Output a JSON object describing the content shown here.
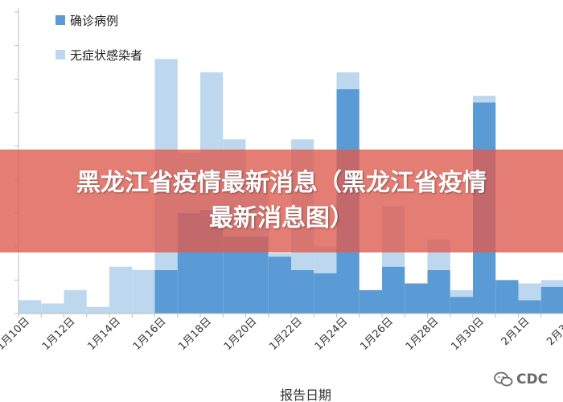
{
  "chart_data": {
    "type": "bar",
    "stacked": true,
    "categories": [
      "1月10日",
      "1月11日",
      "1月12日",
      "1月13日",
      "1月14日",
      "1月15日",
      "1月16日",
      "1月17日",
      "1月18日",
      "1月19日",
      "1月20日",
      "1月21日",
      "1月22日",
      "1月23日",
      "1月24日",
      "1月25日",
      "1月26日",
      "1月27日",
      "1月28日",
      "1月29日",
      "1月30日",
      "1月31日",
      "2月1日",
      "2月2日",
      "2月3日"
    ],
    "x_tick_labels": [
      "1月10日",
      "1月12日",
      "1月14日",
      "1月16日",
      "1月18日",
      "1月20日",
      "1月22日",
      "1月24日",
      "1月26日",
      "1月28日",
      "1月30日",
      "2月1日",
      "2月3日"
    ],
    "series": [
      {
        "name": "确诊病例",
        "color": "#5b9bd5",
        "values": [
          0,
          0,
          0,
          0,
          0,
          0,
          13,
          30,
          31,
          23,
          23,
          17,
          13,
          12,
          67,
          7,
          14,
          9,
          13,
          5,
          63,
          10,
          4,
          8,
          7
        ]
      },
      {
        "name": "无症状感染者",
        "color": "#bdd7ee",
        "values": [
          4,
          3,
          7,
          2,
          14,
          13,
          63,
          18,
          41,
          29,
          19,
          1,
          39,
          8,
          5,
          0,
          18,
          0,
          9,
          2,
          2,
          0,
          5,
          2,
          0
        ]
      }
    ],
    "ylim": [
      0,
      90
    ],
    "y_tick_count": 10,
    "xlabel": "报告日期",
    "ylabel": "",
    "grid": false,
    "legend_position": "top-left"
  },
  "banner": {
    "line1": "黑龙江省疫情最新消息（黑龙江省疫情",
    "line2": "最新消息图）"
  },
  "watermark": {
    "text": "CDC"
  }
}
